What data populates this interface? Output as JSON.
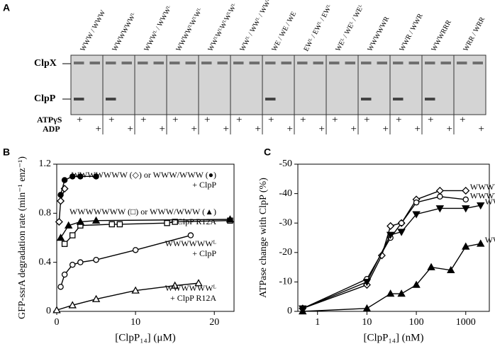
{
  "panel_a": {
    "label": "A",
    "lanes": [
      "WWW / WWW",
      "WWWWWWᴸ",
      "WWWᴸ / WWWᴸ",
      "WWWWᴸWᴸWᴸ",
      "WWᴸWᴸWᴸWᴸWᴸ",
      "WWᴸ / WWᴸ / WWᴸ",
      "WE / WE / WE",
      "EWᴸ / EWᴸ / EWᴸ",
      "WEᴸ / WEᴸ / WEᴸ",
      "WWWWWR",
      "WWR / WWR",
      "WWWRRR",
      "WRR / WRR"
    ],
    "bands": [
      "ClpX",
      "ClpP"
    ],
    "conditions": [
      "ATPγS",
      "ADP"
    ],
    "mark": "+"
  },
  "chart_data": [
    {
      "type": "scatter",
      "panel": "B",
      "xlabel": "[ClpP₁₄] (μM)",
      "ylabel": "GFP-ssrA degradation rate (min⁻¹ enz⁻¹)",
      "xlim": [
        0,
        22.5
      ],
      "xticks": [
        0,
        10,
        20
      ],
      "ylim": [
        0,
        1.2
      ],
      "yticks": [
        0,
        0.4,
        0.8,
        {
          "value": 1.2,
          "label": "1.2"
        }
      ],
      "annotations": [
        "WWWWWWW (◇) or WWW/WWW (●)",
        "+ ClpP",
        "WWWWWWW (□) or WWW/WWW (▲)",
        "+ ClpP R12A",
        "WWWWWWᴸ",
        "+ ClpP",
        "WWWWWWᴸ",
        "+ ClpP R12A"
      ],
      "series": [
        {
          "marker": "diamond",
          "filled": false,
          "color": "#000000",
          "x": [
            0.3,
            0.5,
            1
          ],
          "values": [
            0.73,
            0.9,
            1.0
          ]
        },
        {
          "marker": "circle",
          "filled": true,
          "color": "#000000",
          "x": [
            0.5,
            1,
            2,
            3,
            5
          ],
          "values": [
            0.95,
            1.07,
            1.1,
            1.1,
            1.1
          ]
        },
        {
          "marker": "square",
          "filled": false,
          "color": "#000000",
          "x": [
            1,
            2,
            3,
            7,
            8,
            14,
            15,
            22
          ],
          "values": [
            0.55,
            0.62,
            0.7,
            0.71,
            0.71,
            0.72,
            0.73,
            0.74
          ]
        },
        {
          "marker": "triangle",
          "filled": true,
          "color": "#000000",
          "x": [
            0.5,
            1.5,
            3,
            5,
            22
          ],
          "values": [
            0.6,
            0.7,
            0.73,
            0.74,
            0.75
          ]
        },
        {
          "marker": "circle",
          "filled": false,
          "color": "#000000",
          "x": [
            0.5,
            1,
            2,
            3,
            5,
            10,
            17
          ],
          "values": [
            0.2,
            0.3,
            0.38,
            0.4,
            0.42,
            0.5,
            0.62
          ]
        },
        {
          "marker": "triangle",
          "filled": false,
          "color": "#000000",
          "x": [
            0,
            2,
            5,
            10,
            15,
            18
          ],
          "values": [
            0.01,
            0.05,
            0.1,
            0.17,
            0.21,
            0.23
          ]
        }
      ]
    },
    {
      "type": "scatter",
      "panel": "C",
      "xlabel": "[ClpP₁₄] (nM)",
      "ylabel": "ATPase change with ClpP (%)",
      "xscale": "log",
      "xlim": [
        0.4,
        3000
      ],
      "xticks": [
        1,
        10,
        100,
        1000
      ],
      "ylim": [
        0,
        -50
      ],
      "yticks": [
        0,
        -10,
        -20,
        -30,
        -40,
        -50
      ],
      "series": [
        {
          "name": "WWWWRR",
          "marker": "diamond",
          "filled": false,
          "color": "#000000",
          "x": [
            0.5,
            10,
            20,
            30,
            50,
            100,
            300,
            1000
          ],
          "values": [
            -1,
            -9,
            -19,
            -29,
            -30,
            -38,
            -41,
            -41
          ]
        },
        {
          "name": "WWWWWR",
          "marker": "circle",
          "filled": false,
          "color": "#000000",
          "x": [
            0.5,
            10,
            30,
            50,
            100,
            300,
            1000
          ],
          "values": [
            -1,
            -11,
            -25,
            -30,
            -37,
            -39,
            -38
          ]
        },
        {
          "name": "WWW/WWW",
          "marker": "triangle-down",
          "filled": true,
          "color": "#000000",
          "x": [
            0.5,
            10,
            30,
            50,
            100,
            300,
            1000,
            2000
          ],
          "values": [
            -1,
            -10,
            -26,
            -27,
            -33,
            -35,
            -35,
            -36
          ]
        },
        {
          "name": "WWWRRR",
          "marker": "triangle",
          "filled": true,
          "color": "#000000",
          "x": [
            0.5,
            10,
            30,
            50,
            100,
            200,
            500,
            1000,
            2000
          ],
          "values": [
            0,
            -1,
            -6,
            -6,
            -9,
            -15,
            -14,
            -22,
            -23
          ]
        }
      ]
    }
  ]
}
